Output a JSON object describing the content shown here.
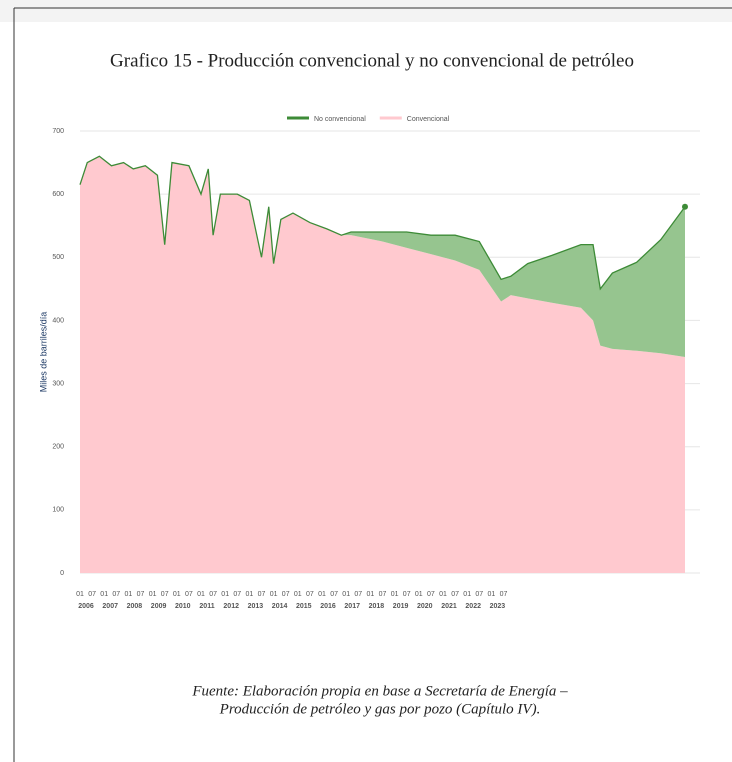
{
  "chart_data": {
    "type": "stacked_area",
    "title": "Grafico 15 - Producción convencional y no convencional de petróleo",
    "y_label": "Miles de barriles/día",
    "caption_lines": [
      "Fuente: Elaboración propia en base a Secretaría de Energía –",
      "Producción de petróleo y gas por pozo (Capítulo IV)."
    ],
    "x": [
      2006.0,
      2006.3,
      2006.8,
      2007.3,
      2007.8,
      2008.2,
      2008.7,
      2009.2,
      2009.5,
      2009.8,
      2010.5,
      2011.0,
      2011.3,
      2011.5,
      2011.8,
      2012.5,
      2013.0,
      2013.5,
      2013.8,
      2014.0,
      2014.3,
      2014.8,
      2015.5,
      2016.2,
      2016.8,
      2017.2,
      2018.5,
      2019.5,
      2020.5,
      2021.5,
      2022.5,
      2023.4,
      2023.8,
      2024.5,
      2025.5,
      2026.7,
      2027.2,
      2027.5,
      2028.0,
      2029.0,
      2030.0,
      2031.0
    ],
    "series": [
      {
        "name": "Convencional",
        "color": "#ffc9cf",
        "values": [
          615,
          650,
          660,
          645,
          650,
          640,
          645,
          630,
          520,
          650,
          645,
          600,
          640,
          535,
          600,
          600,
          590,
          500,
          580,
          490,
          560,
          570,
          555,
          545,
          535,
          535,
          525,
          515,
          505,
          495,
          480,
          430,
          440,
          435,
          428,
          420,
          400,
          360,
          355,
          352,
          348,
          342
        ]
      },
      {
        "name": "No convencional",
        "color": "#96c58f",
        "line_color": "#3d8b37",
        "values": [
          0,
          0,
          0,
          0,
          0,
          0,
          0,
          0,
          0,
          0,
          0,
          0,
          0,
          0,
          0,
          0,
          0,
          0,
          0,
          0,
          0,
          0,
          0,
          0,
          0,
          5,
          15,
          25,
          30,
          40,
          45,
          35,
          30,
          55,
          75,
          100,
          120,
          90,
          120,
          140,
          180,
          238
        ]
      }
    ],
    "xlim": [
      2006,
      2031
    ],
    "ylim": [
      0,
      700
    ],
    "yticks": [
      0,
      100,
      200,
      300,
      400,
      500,
      600,
      700
    ],
    "xticks": [
      {
        "value": 2006,
        "label": "01"
      },
      {
        "value": 2006.5,
        "label": "07"
      },
      {
        "value": 2007,
        "label": "01"
      },
      {
        "value": 2007.5,
        "label": "07"
      },
      {
        "value": 2008,
        "label": "01"
      },
      {
        "value": 2008.5,
        "label": "07"
      },
      {
        "value": 2009,
        "label": "01"
      },
      {
        "value": 2009.5,
        "label": "07"
      },
      {
        "value": 2010,
        "label": "01"
      },
      {
        "value": 2010.5,
        "label": "07"
      },
      {
        "value": 2011,
        "label": "01"
      },
      {
        "value": 2011.5,
        "label": "07"
      },
      {
        "value": 2012,
        "label": "01"
      },
      {
        "value": 2012.5,
        "label": "07"
      },
      {
        "value": 2013,
        "label": "01"
      },
      {
        "value": 2013.5,
        "label": "07"
      },
      {
        "value": 2014,
        "label": "01"
      },
      {
        "value": 2014.5,
        "label": "07"
      },
      {
        "value": 2015,
        "label": "01"
      },
      {
        "value": 2015.5,
        "label": "07"
      },
      {
        "value": 2016,
        "label": "01"
      },
      {
        "value": 2016.5,
        "label": "07"
      },
      {
        "value": 2017,
        "label": "01"
      },
      {
        "value": 2017.5,
        "label": "07"
      },
      {
        "value": 2018,
        "label": "01"
      },
      {
        "value": 2018.5,
        "label": "07"
      },
      {
        "value": 2019,
        "label": "01"
      },
      {
        "value": 2019.5,
        "label": "07"
      },
      {
        "value": 2020,
        "label": "01"
      },
      {
        "value": 2020.5,
        "label": "07"
      },
      {
        "value": 2021,
        "label": "01"
      },
      {
        "value": 2021.5,
        "label": "07"
      },
      {
        "value": 2022,
        "label": "01"
      },
      {
        "value": 2022.5,
        "label": "07"
      },
      {
        "value": 2023,
        "label": "01"
      },
      {
        "value": 2023.5,
        "label": "07"
      }
    ],
    "year_ticks": [
      2006,
      2007,
      2008,
      2009,
      2010,
      2011,
      2012,
      2013,
      2014,
      2015,
      2016,
      2017,
      2018,
      2019,
      2020,
      2021,
      2022,
      2023
    ],
    "grid": true,
    "legend": "top"
  }
}
